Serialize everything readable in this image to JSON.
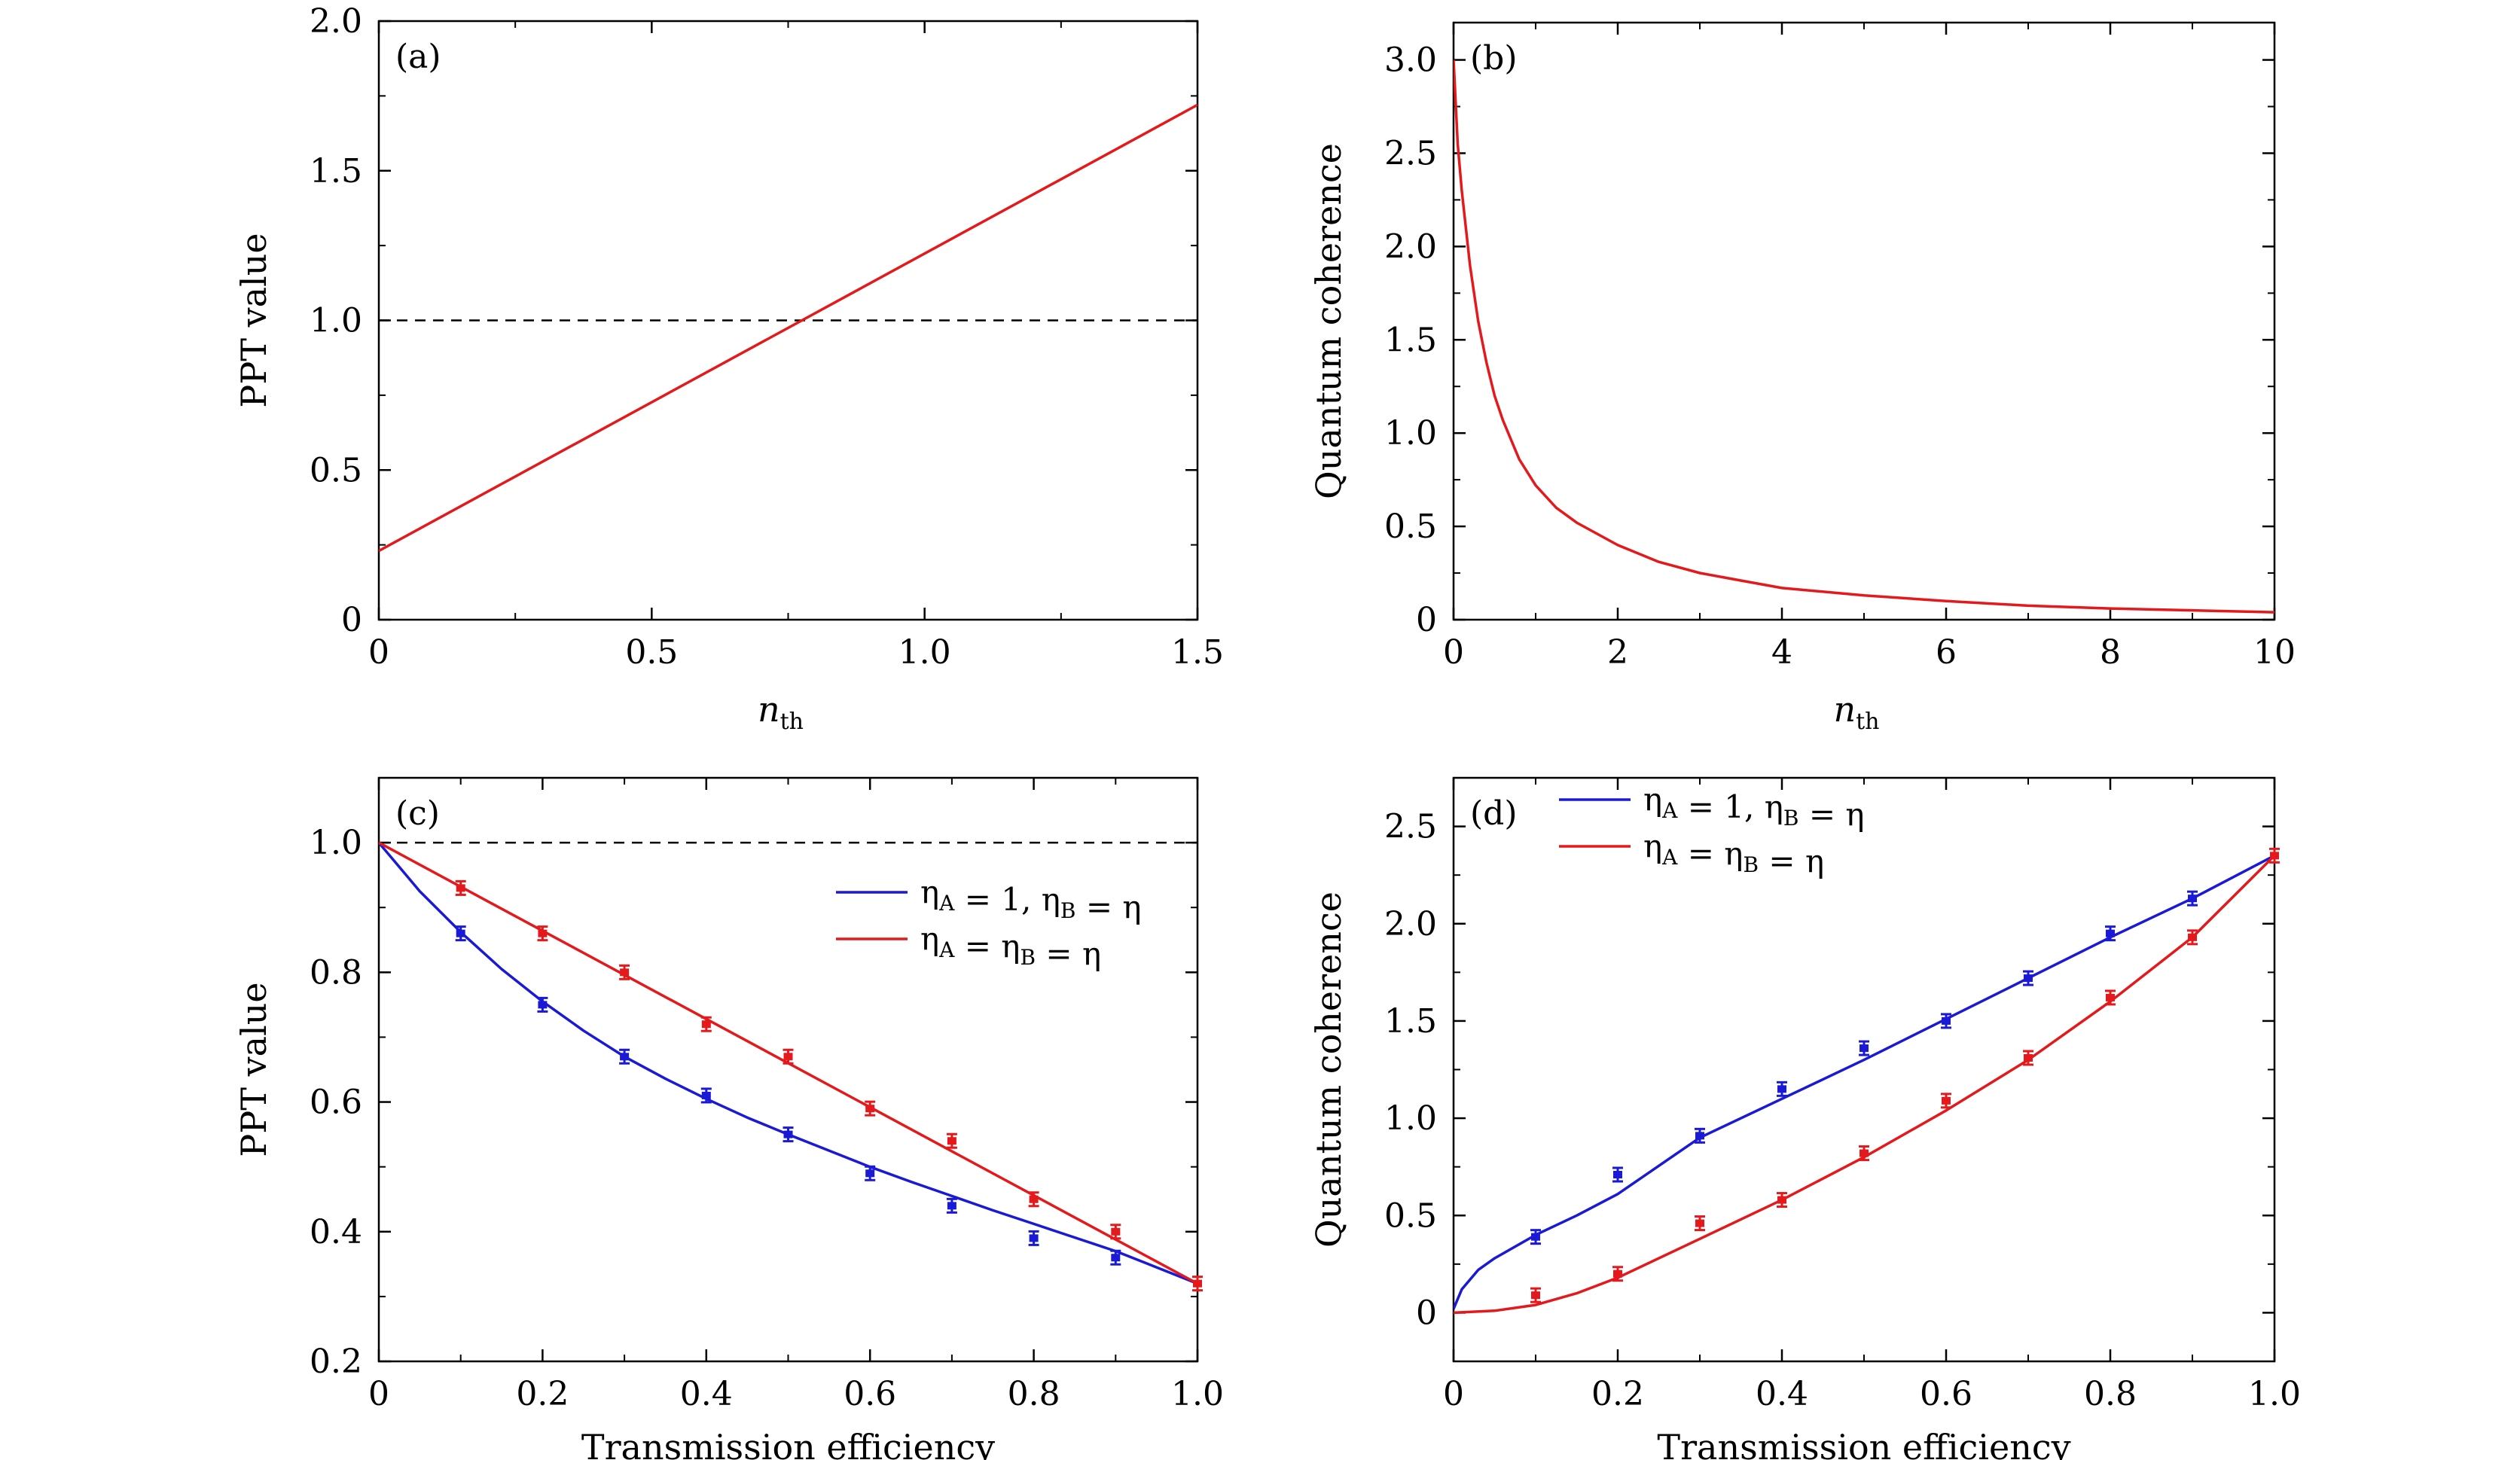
{
  "figure": {
    "colors": {
      "red": "#e4191c",
      "blue": "#1a1ad6",
      "axis": "#000000"
    }
  },
  "chart_data": [
    {
      "id": "a",
      "type": "line",
      "panel_label": "(a)",
      "xlabel": "n",
      "xlabel_sub": "th",
      "ylabel": "PPT value",
      "xlim": [
        0,
        1.5
      ],
      "ylim": [
        0,
        2.0
      ],
      "xticks": [
        0,
        0.5,
        1.0,
        1.5
      ],
      "xtick_labels": [
        "0",
        "0.5",
        "1.0",
        "1.5"
      ],
      "yticks": [
        0,
        0.5,
        1.0,
        1.5,
        2.0
      ],
      "ytick_labels": [
        "0",
        "0.5",
        "1.0",
        "1.5",
        "2.0"
      ],
      "reference_line": {
        "y": 1.0,
        "style": "dashed"
      },
      "series": [
        {
          "color": "#e4191c",
          "x": [
            0,
            1.5
          ],
          "y": [
            0.23,
            1.72
          ]
        }
      ]
    },
    {
      "id": "b",
      "type": "line",
      "panel_label": "(b)",
      "xlabel": "n",
      "xlabel_sub": "th",
      "ylabel": "Quantum coherence",
      "xlim": [
        0,
        10
      ],
      "ylim": [
        0,
        3.2
      ],
      "xticks": [
        0,
        2,
        4,
        6,
        8,
        10
      ],
      "xtick_labels": [
        "0",
        "2",
        "4",
        "6",
        "8",
        "10"
      ],
      "yticks": [
        0,
        0.5,
        1.0,
        1.5,
        2.0,
        2.5,
        3.0
      ],
      "ytick_labels": [
        "0",
        "0.5",
        "1.0",
        "1.5",
        "2.0",
        "2.5",
        "3.0"
      ],
      "series": [
        {
          "color": "#e4191c",
          "x": [
            0,
            0.05,
            0.1,
            0.2,
            0.3,
            0.4,
            0.5,
            0.6,
            0.8,
            1.0,
            1.25,
            1.5,
            2,
            2.5,
            3,
            3.5,
            4,
            5,
            6,
            7,
            8,
            9,
            10
          ],
          "y": [
            3.0,
            2.55,
            2.3,
            1.9,
            1.6,
            1.38,
            1.2,
            1.07,
            0.86,
            0.72,
            0.6,
            0.52,
            0.4,
            0.31,
            0.25,
            0.21,
            0.17,
            0.13,
            0.1,
            0.075,
            0.06,
            0.05,
            0.04
          ]
        }
      ]
    },
    {
      "id": "c",
      "type": "line",
      "panel_label": "(c)",
      "xlabel": "Transmission efficiency",
      "ylabel": "PPT value",
      "xlim": [
        0,
        1.0
      ],
      "ylim": [
        0.2,
        1.1
      ],
      "xticks": [
        0,
        0.2,
        0.4,
        0.6,
        0.8,
        1.0
      ],
      "xtick_labels": [
        "0",
        "0.2",
        "0.4",
        "0.6",
        "0.8",
        "1.0"
      ],
      "yticks": [
        0.2,
        0.4,
        0.6,
        0.8,
        1.0
      ],
      "ytick_labels": [
        "0.2",
        "0.4",
        "0.6",
        "0.8",
        "1.0"
      ],
      "reference_line": {
        "y": 1.0,
        "style": "dashed"
      },
      "legend_position": "upper-right",
      "series": [
        {
          "name": "η_A = 1, η_B = η",
          "color": "#1a1ad6",
          "curve_x": [
            0,
            0.05,
            0.1,
            0.15,
            0.2,
            0.25,
            0.3,
            0.35,
            0.4,
            0.45,
            0.5,
            0.55,
            0.6,
            0.65,
            0.7,
            0.75,
            0.8,
            0.85,
            0.9,
            0.95,
            1.0
          ],
          "curve_y": [
            1.0,
            0.925,
            0.862,
            0.805,
            0.755,
            0.71,
            0.67,
            0.636,
            0.605,
            0.576,
            0.55,
            0.525,
            0.5,
            0.477,
            0.455,
            0.433,
            0.412,
            0.391,
            0.37,
            0.345,
            0.32
          ],
          "points_x": [
            0.1,
            0.2,
            0.3,
            0.4,
            0.5,
            0.6,
            0.7,
            0.8,
            0.9
          ],
          "points_y": [
            0.86,
            0.75,
            0.67,
            0.61,
            0.55,
            0.49,
            0.44,
            0.39,
            0.36
          ]
        },
        {
          "name": "η_A = η_B = η",
          "color": "#e4191c",
          "curve_x": [
            0,
            1.0
          ],
          "curve_y": [
            1.0,
            0.32
          ],
          "points_x": [
            0.1,
            0.2,
            0.3,
            0.4,
            0.5,
            0.6,
            0.7,
            0.8,
            0.9,
            1.0
          ],
          "points_y": [
            0.93,
            0.86,
            0.8,
            0.72,
            0.67,
            0.59,
            0.54,
            0.45,
            0.4,
            0.32
          ]
        }
      ]
    },
    {
      "id": "d",
      "type": "line",
      "panel_label": "(d)",
      "xlabel": "Transmission efficiency",
      "ylabel": "Quantum coherence",
      "xlim": [
        0,
        1.0
      ],
      "ylim": [
        -0.25,
        2.75
      ],
      "xticks": [
        0,
        0.2,
        0.4,
        0.6,
        0.8,
        1.0
      ],
      "xtick_labels": [
        "0",
        "0.2",
        "0.4",
        "0.6",
        "0.8",
        "1.0"
      ],
      "yticks": [
        0,
        0.5,
        1.0,
        1.5,
        2.0,
        2.5
      ],
      "ytick_labels": [
        "0",
        "0.5",
        "1.0",
        "1.5",
        "2.0",
        "2.5"
      ],
      "legend_position": "upper-left",
      "series": [
        {
          "name": "η_A = 1, η_B = η",
          "color": "#1a1ad6",
          "curve_x": [
            0,
            0.01,
            0.03,
            0.05,
            0.1,
            0.15,
            0.2,
            0.3,
            0.4,
            0.5,
            0.6,
            0.7,
            0.8,
            0.9,
            1.0
          ],
          "curve_y": [
            0.02,
            0.12,
            0.22,
            0.28,
            0.4,
            0.5,
            0.61,
            0.9,
            1.1,
            1.3,
            1.51,
            1.72,
            1.93,
            2.13,
            2.35
          ],
          "points_x": [
            0.1,
            0.2,
            0.3,
            0.4,
            0.5,
            0.6,
            0.7,
            0.8,
            0.9
          ],
          "points_y": [
            0.39,
            0.71,
            0.91,
            1.15,
            1.36,
            1.5,
            1.72,
            1.95,
            2.13
          ]
        },
        {
          "name": "η_A = η_B = η",
          "color": "#e4191c",
          "curve_x": [
            0,
            0.05,
            0.1,
            0.15,
            0.2,
            0.3,
            0.4,
            0.5,
            0.6,
            0.7,
            0.8,
            0.9,
            1.0
          ],
          "curve_y": [
            0,
            0.01,
            0.04,
            0.1,
            0.18,
            0.38,
            0.58,
            0.8,
            1.04,
            1.3,
            1.6,
            1.93,
            2.35
          ],
          "points_x": [
            0.1,
            0.2,
            0.3,
            0.4,
            0.5,
            0.6,
            0.7,
            0.8,
            0.9,
            1.0
          ],
          "points_y": [
            0.09,
            0.2,
            0.46,
            0.58,
            0.82,
            1.09,
            1.31,
            1.62,
            1.93,
            2.35
          ]
        }
      ]
    }
  ]
}
